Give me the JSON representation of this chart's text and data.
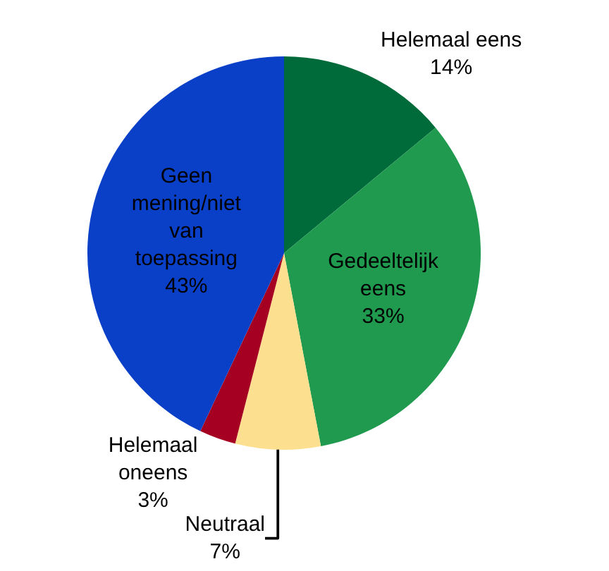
{
  "chart_data": {
    "type": "pie",
    "categories": [
      "Helemaal eens",
      "Gedeeltelijk eens",
      "Neutraal",
      "Helemaal oneens",
      "Geen mening/niet van toepassing"
    ],
    "values": [
      14,
      33,
      7,
      3,
      43
    ],
    "value_labels": [
      "14%",
      "33%",
      "7%",
      "3%",
      "43%"
    ],
    "colors": [
      "#006b3a",
      "#1f9a4e",
      "#fde08f",
      "#a50021",
      "#0a3fc8"
    ],
    "legend": false
  }
}
